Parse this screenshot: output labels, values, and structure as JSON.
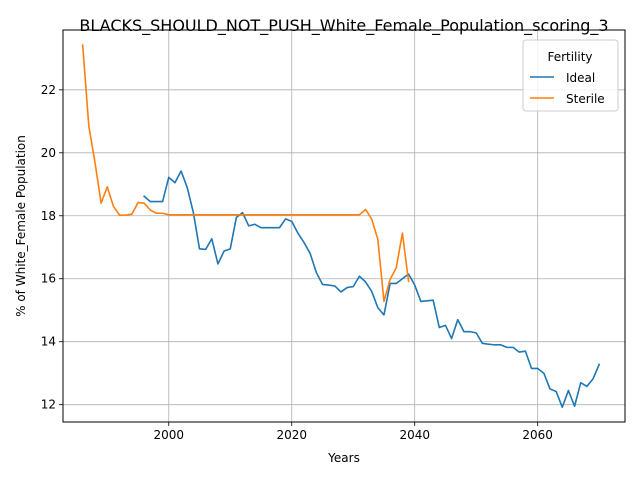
{
  "chart_data": {
    "type": "line",
    "title": "BLACKS_SHOULD_NOT_PUSH_White_Female_Population_scoring_3",
    "xlabel": "Years",
    "ylabel": "% of White_Female Population",
    "xlim": [
      1982.8,
      2074.2
    ],
    "ylim": [
      11.45,
      23.9
    ],
    "x_ticks": [
      2000,
      2020,
      2040,
      2060
    ],
    "y_ticks": [
      12,
      14,
      16,
      18,
      20,
      22
    ],
    "grid": true,
    "legend": {
      "title": "Fertility",
      "placement": "top-right"
    },
    "series": [
      {
        "name": "Ideal",
        "color": "#1f77b4",
        "x": [
          1996,
          1997,
          1998,
          1999,
          2000,
          2001,
          2002,
          2003,
          2004,
          2005,
          2006,
          2007,
          2008,
          2009,
          2010,
          2011,
          2012,
          2013,
          2014,
          2015,
          2016,
          2017,
          2018,
          2019,
          2020,
          2021,
          2022,
          2023,
          2024,
          2025,
          2026,
          2027,
          2028,
          2029,
          2030,
          2031,
          2032,
          2033,
          2034,
          2035,
          2036,
          2037,
          2038,
          2039,
          2040,
          2041,
          2042,
          2043,
          2044,
          2045,
          2046,
          2047,
          2048,
          2049,
          2050,
          2051,
          2052,
          2053,
          2054,
          2055,
          2056,
          2057,
          2058,
          2059,
          2060,
          2061,
          2062,
          2063,
          2064,
          2065,
          2066,
          2067,
          2068,
          2069,
          2070
        ],
        "y": [
          18.62,
          18.45,
          18.45,
          18.45,
          19.22,
          19.05,
          19.42,
          18.9,
          18.1,
          16.95,
          16.93,
          17.27,
          16.47,
          16.88,
          16.95,
          17.95,
          18.1,
          17.68,
          17.73,
          17.62,
          17.62,
          17.62,
          17.62,
          17.9,
          17.82,
          17.45,
          17.15,
          16.8,
          16.2,
          15.82,
          15.8,
          15.77,
          15.58,
          15.72,
          15.75,
          16.08,
          15.9,
          15.6,
          15.08,
          14.85,
          15.85,
          15.85,
          16.0,
          16.15,
          15.8,
          15.28,
          15.3,
          15.32,
          14.45,
          14.52,
          14.1,
          14.7,
          14.32,
          14.32,
          14.28,
          13.95,
          13.92,
          13.9,
          13.9,
          13.82,
          13.82,
          13.67,
          13.7,
          13.15,
          13.15,
          13.0,
          12.5,
          12.42,
          11.92,
          12.45,
          11.95,
          12.7,
          12.58,
          12.82,
          13.28
        ]
      },
      {
        "name": "Sterile",
        "color": "#ff7f0e",
        "x": [
          1986,
          1987,
          1988,
          1989,
          1990,
          1991,
          1992,
          1993,
          1994,
          1995,
          1996,
          1997,
          1998,
          1999,
          2000,
          2001,
          2002,
          2003,
          2004,
          2005,
          2006,
          2007,
          2008,
          2009,
          2010,
          2011,
          2012,
          2013,
          2014,
          2015,
          2016,
          2017,
          2018,
          2019,
          2020,
          2021,
          2022,
          2023,
          2024,
          2025,
          2026,
          2027,
          2028,
          2029,
          2030,
          2031,
          2032,
          2033,
          2034,
          2035,
          2036,
          2037,
          2038,
          2039
        ],
        "y": [
          23.42,
          20.85,
          19.7,
          18.4,
          18.92,
          18.3,
          18.02,
          18.02,
          18.05,
          18.42,
          18.4,
          18.18,
          18.08,
          18.08,
          18.03,
          18.03,
          18.03,
          18.03,
          18.03,
          18.03,
          18.03,
          18.03,
          18.03,
          18.03,
          18.03,
          18.03,
          18.03,
          18.03,
          18.03,
          18.03,
          18.03,
          18.03,
          18.03,
          18.03,
          18.03,
          18.03,
          18.03,
          18.03,
          18.03,
          18.03,
          18.03,
          18.03,
          18.03,
          18.03,
          18.03,
          18.03,
          18.2,
          17.9,
          17.25,
          15.28,
          15.98,
          16.35,
          17.45,
          15.92
        ]
      }
    ]
  }
}
